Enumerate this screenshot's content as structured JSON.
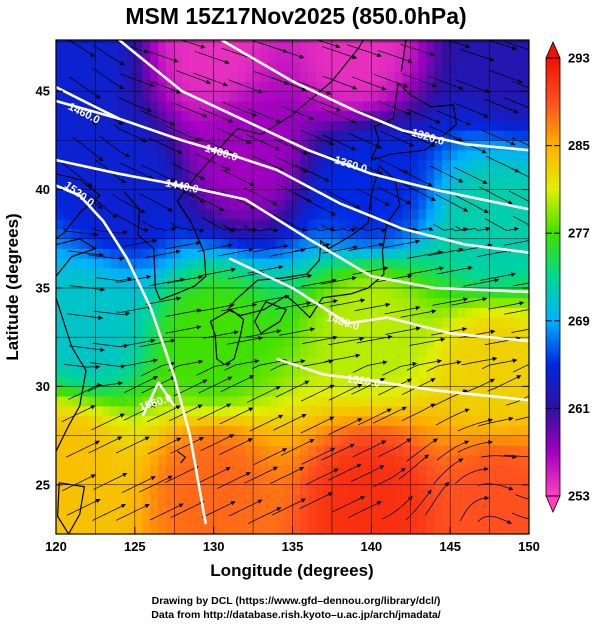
{
  "chart_data": {
    "type": "heatmap",
    "title": "MSM 15Z17Nov2025 (850.0hPa)",
    "xlabel": "Longitude (degrees)",
    "ylabel": "Latitude  (degrees)",
    "xlim": [
      120,
      150
    ],
    "ylim": [
      22.5,
      47.6
    ],
    "x_ticks": [
      "120",
      "125",
      "130",
      "135",
      "140",
      "145",
      "150"
    ],
    "y_ticks": [
      "25",
      "30",
      "35",
      "40",
      "45"
    ],
    "x_tick_values": [
      120,
      125,
      130,
      135,
      140,
      145,
      150
    ],
    "y_tick_values": [
      25,
      30,
      35,
      40,
      45
    ],
    "grid": true,
    "grid_step_deg": 2.5,
    "colorbar": {
      "min": 253,
      "max": 293,
      "ticks": [
        "253",
        "261",
        "269",
        "277",
        "285",
        "293"
      ],
      "tick_values": [
        253,
        261,
        269,
        277,
        285,
        293
      ],
      "stops": [
        "#ff40c0",
        "#a000c0",
        "#3010a0",
        "#0028e0",
        "#00b0ff",
        "#00d890",
        "#40e000",
        "#e0f000",
        "#ffb000",
        "#ff5020",
        "#f01000"
      ]
    },
    "field_samples": [
      {
        "lon": 121,
        "lat": 47,
        "value": 264
      },
      {
        "lon": 130,
        "lat": 47,
        "value": 254
      },
      {
        "lon": 139,
        "lat": 47,
        "value": 254
      },
      {
        "lon": 149,
        "lat": 47,
        "value": 262
      },
      {
        "lon": 124,
        "lat": 40,
        "value": 264
      },
      {
        "lon": 132,
        "lat": 42,
        "value": 257
      },
      {
        "lon": 140,
        "lat": 40,
        "value": 265
      },
      {
        "lon": 148,
        "lat": 38,
        "value": 272
      },
      {
        "lon": 122,
        "lat": 33,
        "value": 271
      },
      {
        "lon": 130,
        "lat": 32,
        "value": 277
      },
      {
        "lon": 140,
        "lat": 33,
        "value": 280
      },
      {
        "lon": 148,
        "lat": 31,
        "value": 283
      },
      {
        "lon": 121,
        "lat": 26,
        "value": 284
      },
      {
        "lon": 130,
        "lat": 25,
        "value": 288
      },
      {
        "lon": 140,
        "lat": 24,
        "value": 291
      },
      {
        "lon": 148,
        "lat": 24,
        "value": 289
      }
    ],
    "contours": [
      {
        "label": "1320.0",
        "points": [
          [
            130.5,
            47.6
          ],
          [
            135,
            45.5
          ],
          [
            139,
            44
          ],
          [
            142,
            43
          ],
          [
            146,
            42.3
          ],
          [
            150,
            42
          ]
        ],
        "label_at": [
          143.6,
          42.7
        ]
      },
      {
        "label": "1360.0",
        "points": [
          [
            124,
            47.6
          ],
          [
            128,
            45
          ],
          [
            132,
            43.5
          ],
          [
            136,
            42
          ],
          [
            140,
            40.8
          ],
          [
            144,
            40
          ],
          [
            150,
            39
          ]
        ],
        "label_at": [
          138.7,
          41.3
        ]
      },
      {
        "label": "1400.0",
        "points": [
          [
            120,
            44.5
          ],
          [
            124,
            43.6
          ],
          [
            128,
            42.5
          ],
          [
            131,
            41.8
          ],
          [
            134,
            41
          ],
          [
            138,
            39.3
          ],
          [
            142,
            38
          ],
          [
            146,
            37.2
          ],
          [
            150,
            36.8
          ]
        ],
        "label_at": [
          130.5,
          41.9
        ]
      },
      {
        "label": "1440.0",
        "points": [
          [
            120,
            41.5
          ],
          [
            124,
            40.8
          ],
          [
            128,
            40.2
          ],
          [
            132,
            39.5
          ],
          [
            136,
            37.5
          ],
          [
            140,
            35.6
          ],
          [
            144,
            35
          ],
          [
            150,
            34.8
          ]
        ],
        "label_at": [
          128.0,
          40.2
        ]
      },
      {
        "label": "1460.0",
        "points": [
          [
            120,
            45.2
          ],
          [
            122,
            44.4
          ],
          [
            124,
            43.6
          ]
        ],
        "label_at": [
          121.8,
          43.9
        ]
      },
      {
        "label": "1520.0",
        "points": [
          [
            120,
            40.2
          ],
          [
            121.5,
            39.7
          ],
          [
            123,
            38.4
          ],
          [
            124.5,
            36.5
          ],
          [
            126,
            34
          ],
          [
            127.5,
            30.5
          ],
          [
            128.5,
            27.5
          ],
          [
            129.5,
            23
          ]
        ],
        "label_at": [
          121.5,
          39.8
        ]
      },
      {
        "label": "1480.0",
        "points": [
          [
            131,
            36.5
          ],
          [
            135,
            35
          ],
          [
            138.5,
            33.2
          ],
          [
            141,
            33.5
          ],
          [
            145,
            32.7
          ],
          [
            150,
            32.3
          ]
        ],
        "label_at": [
          138.2,
          33.3
        ]
      },
      {
        "label": "1520.0",
        "points": [
          [
            134,
            31.4
          ],
          [
            137,
            30.6
          ],
          [
            140,
            30.3
          ],
          [
            144,
            29.8
          ],
          [
            150,
            29.3
          ]
        ],
        "label_at": [
          139.5,
          30.3
        ]
      },
      {
        "label": "1560.0",
        "points": [
          [
            125.5,
            28.5
          ],
          [
            126.5,
            30.2
          ],
          [
            127.5,
            29
          ]
        ],
        "label_at": [
          126.3,
          29.2
        ]
      }
    ]
  },
  "credits": {
    "line1": "Drawing by DCL (https://www.gfd–dennou.org/library/dcl/)",
    "line2": "Data from http://database.rish.kyoto–u.ac.jp/arch/jmadata/"
  }
}
